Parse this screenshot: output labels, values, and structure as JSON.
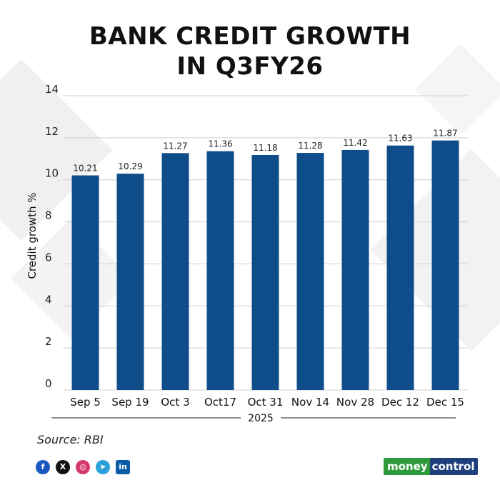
{
  "title": "BANK CREDIT GROWTH\nIN Q3FY26",
  "source": "Source: RBI",
  "brand": {
    "part1": "money",
    "part2": "control"
  },
  "social_icons": [
    "facebook-icon",
    "x-icon",
    "instagram-icon",
    "telegram-icon",
    "linkedin-icon"
  ],
  "colors": {
    "bar": "#0f4c8a",
    "grid": "#cfcfcf",
    "brand_green": "#2f9a3a",
    "brand_blue": "#1d3f7a"
  },
  "chart_data": {
    "type": "bar",
    "title": "BANK CREDIT GROWTH IN Q3FY26",
    "ylabel": "Credit growth %",
    "xlabel": "2025",
    "categories": [
      "Sep 5",
      "Sep 19",
      "Oct 3",
      "Oct17",
      "Oct 31",
      "Nov 14",
      "Nov 28",
      "Dec 12",
      "Dec 15"
    ],
    "values": [
      10.21,
      10.29,
      11.27,
      11.36,
      11.18,
      11.28,
      11.42,
      11.63,
      11.87
    ],
    "value_labels": [
      "10.21",
      "10.29",
      "11.27",
      "11.36",
      "11.18",
      "11.28",
      "11.42",
      "11.63",
      "11.87"
    ],
    "ylim": [
      0,
      14
    ],
    "yticks": [
      0,
      2,
      4,
      6,
      8,
      10,
      12,
      14
    ],
    "grid": true
  }
}
